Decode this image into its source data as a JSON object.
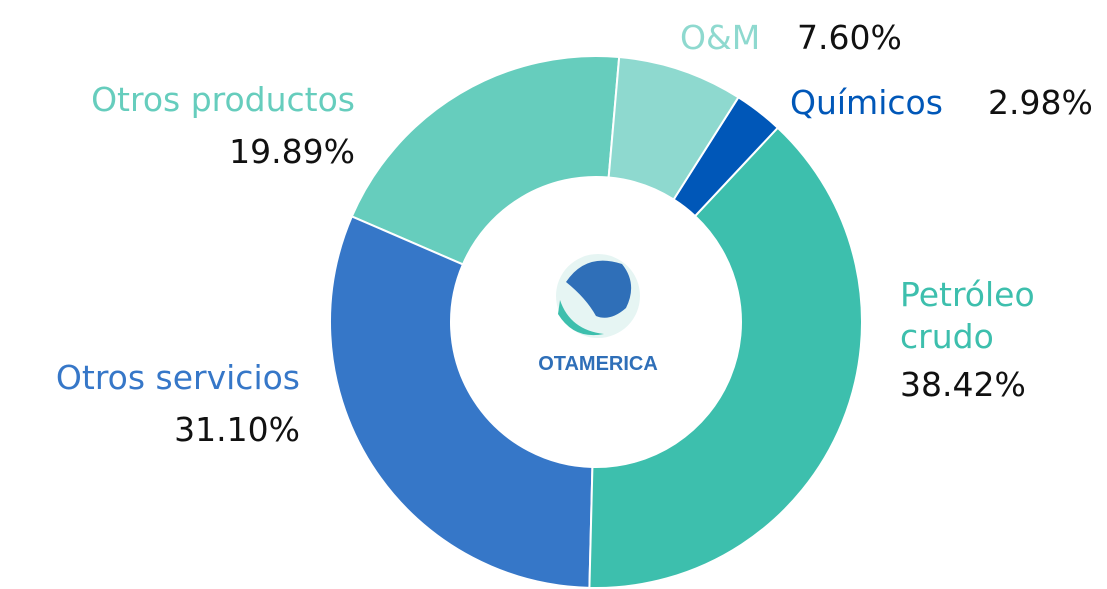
{
  "chart_data": {
    "type": "donut",
    "center_logo": "OTAMERICA",
    "categories": [
      "O&M",
      "Químicos",
      "Petróleo crudo",
      "Otros servicios",
      "Otros productos"
    ],
    "values": [
      7.6,
      2.98,
      38.42,
      31.1,
      19.89
    ],
    "value_labels": [
      "7.60%",
      "2.98%",
      "38.42%",
      "31.10%",
      "19.89%"
    ],
    "colors": [
      "#8ed9cf",
      "#0057b8",
      "#3dbfad",
      "#3677c8",
      "#66cdbd"
    ]
  }
}
